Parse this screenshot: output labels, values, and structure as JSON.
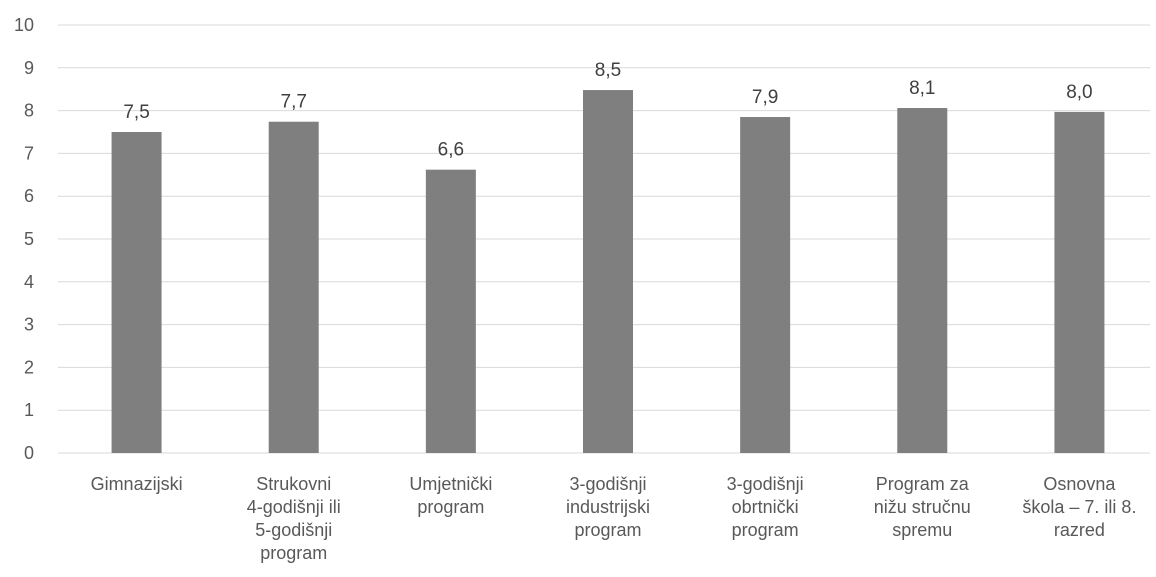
{
  "chart_data": {
    "type": "bar",
    "categories": [
      "Gimnazijski",
      "Strukovni\n4-godišnji ili\n5-godišnji\nprogram",
      "Umjetnički\nprogram",
      "3-godišnji\nindustrijski\nprogram",
      "3-godišnji\nobrtnički\nprogram",
      "Program za\nnižu stručnu\nspremu",
      "Osnovna\nškola – 7. ili 8.\nrazred"
    ],
    "values": [
      7.5,
      7.74,
      6.62,
      8.48,
      7.85,
      8.06,
      7.97
    ],
    "value_labels": [
      "7,5",
      "7,7",
      "6,6",
      "8,5",
      "7,9",
      "8,1",
      "8,0"
    ],
    "color": "#7f7f7f",
    "ylim": [
      0,
      10
    ],
    "yticks": [
      0,
      1,
      2,
      3,
      4,
      5,
      6,
      7,
      8,
      9,
      10
    ],
    "grid": true
  }
}
